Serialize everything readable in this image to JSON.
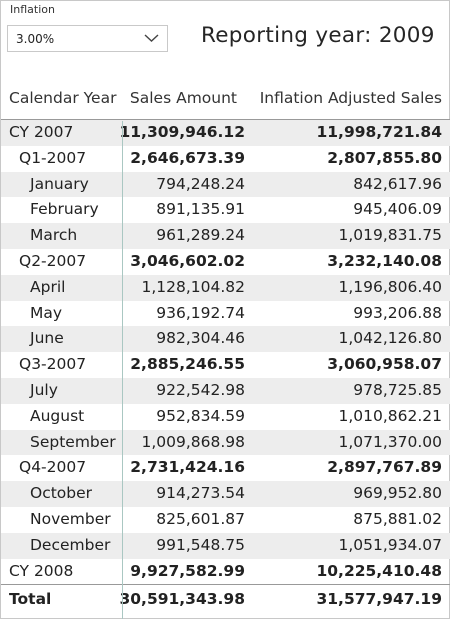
{
  "slicer": {
    "title": "Inflation",
    "value": "3.00%",
    "chevron_icon": "chevron-down-icon"
  },
  "report_year_label": "Reporting year: 2009",
  "matrix": {
    "headers": [
      "Calendar Year",
      "Sales Amount",
      "Inflation Adjusted Sales"
    ],
    "rows": [
      {
        "label": "CY 2007",
        "sales": "11,309,946.12",
        "adjusted": "11,998,721.84",
        "level": 0,
        "bold": true
      },
      {
        "label": "Q1-2007",
        "sales": "2,646,673.39",
        "adjusted": "2,807,855.80",
        "level": 1,
        "bold": true
      },
      {
        "label": "January",
        "sales": "794,248.24",
        "adjusted": "842,617.96",
        "level": 2,
        "bold": false
      },
      {
        "label": "February",
        "sales": "891,135.91",
        "adjusted": "945,406.09",
        "level": 2,
        "bold": false
      },
      {
        "label": "March",
        "sales": "961,289.24",
        "adjusted": "1,019,831.75",
        "level": 2,
        "bold": false
      },
      {
        "label": "Q2-2007",
        "sales": "3,046,602.02",
        "adjusted": "3,232,140.08",
        "level": 1,
        "bold": true
      },
      {
        "label": "April",
        "sales": "1,128,104.82",
        "adjusted": "1,196,806.40",
        "level": 2,
        "bold": false
      },
      {
        "label": "May",
        "sales": "936,192.74",
        "adjusted": "993,206.88",
        "level": 2,
        "bold": false
      },
      {
        "label": "June",
        "sales": "982,304.46",
        "adjusted": "1,042,126.80",
        "level": 2,
        "bold": false
      },
      {
        "label": "Q3-2007",
        "sales": "2,885,246.55",
        "adjusted": "3,060,958.07",
        "level": 1,
        "bold": true
      },
      {
        "label": "July",
        "sales": "922,542.98",
        "adjusted": "978,725.85",
        "level": 2,
        "bold": false
      },
      {
        "label": "August",
        "sales": "952,834.59",
        "adjusted": "1,010,862.21",
        "level": 2,
        "bold": false
      },
      {
        "label": "September",
        "sales": "1,009,868.98",
        "adjusted": "1,071,370.00",
        "level": 2,
        "bold": false
      },
      {
        "label": "Q4-2007",
        "sales": "2,731,424.16",
        "adjusted": "2,897,767.89",
        "level": 1,
        "bold": true
      },
      {
        "label": "October",
        "sales": "914,273.54",
        "adjusted": "969,952.80",
        "level": 2,
        "bold": false
      },
      {
        "label": "November",
        "sales": "825,601.87",
        "adjusted": "875,881.02",
        "level": 2,
        "bold": false
      },
      {
        "label": "December",
        "sales": "991,548.75",
        "adjusted": "1,051,934.07",
        "level": 2,
        "bold": false
      },
      {
        "label": "CY 2008",
        "sales": "9,927,582.99",
        "adjusted": "10,225,410.48",
        "level": 0,
        "bold": true
      }
    ],
    "total": {
      "label": "Total",
      "sales": "30,591,343.98",
      "adjusted": "31,577,947.19"
    }
  }
}
